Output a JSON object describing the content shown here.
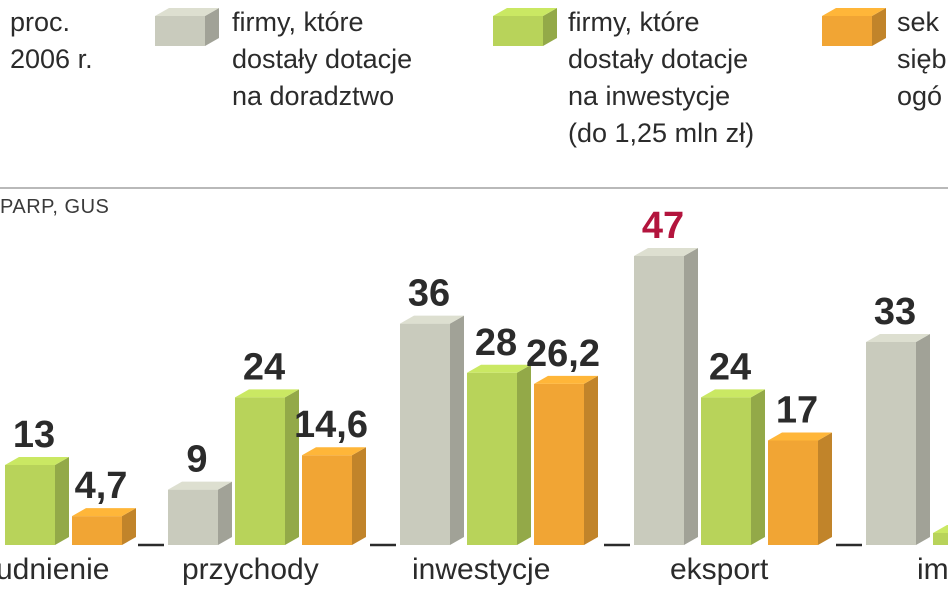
{
  "chart_data": {
    "type": "bar",
    "header": {
      "unit_line1": "proc.",
      "unit_line2": "2006 r."
    },
    "source": "PARP, GUS",
    "categories": [
      "udnienie",
      "przychody",
      "inwestycje",
      "eksport",
      "im"
    ],
    "series": [
      {
        "name": [
          "firmy, które",
          "dostały dotacje",
          "na doradztwo"
        ],
        "color": "#c9cbbd",
        "values": [
          null,
          9,
          36,
          47,
          33
        ],
        "labels": [
          null,
          "9",
          "36",
          "47",
          "33"
        ]
      },
      {
        "name": [
          "firmy, które",
          "dostały dotacje",
          "na inwestycje",
          "(do 1,25 mln zł)"
        ],
        "color": "#b8d35a",
        "values": [
          13,
          24,
          28,
          24,
          1
        ],
        "labels": [
          "13",
          "24",
          "28",
          "24",
          "1"
        ]
      },
      {
        "name": [
          "sek",
          "sięb",
          "ogó"
        ],
        "color": "#f1a534",
        "values": [
          4.7,
          14.6,
          26.2,
          17,
          null
        ],
        "labels": [
          "4,7",
          "14,6",
          "26,2",
          "17",
          null
        ]
      }
    ],
    "highlight": {
      "category_index": 3,
      "series_index": 0,
      "color": "#b3143d"
    },
    "grid": false,
    "legend_position": "top"
  }
}
